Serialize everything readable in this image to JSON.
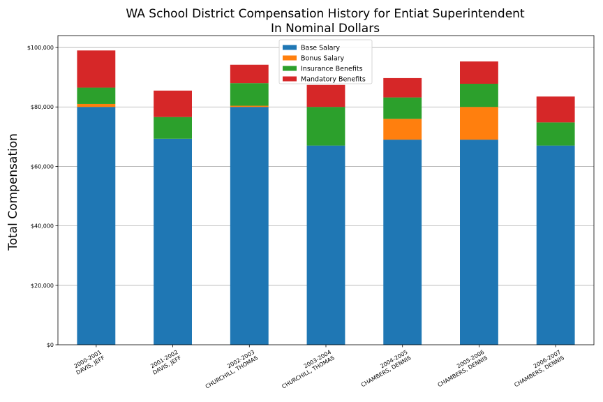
{
  "chart_data": {
    "type": "bar",
    "stacked": true,
    "title": [
      "WA School District Compensation History for Entiat Superintendent",
      "In Nominal Dollars"
    ],
    "xlabel": "",
    "ylabel": "Total Compensation",
    "ylim": [
      0,
      104000
    ],
    "yticks": [
      0,
      20000,
      40000,
      60000,
      80000,
      100000
    ],
    "ytick_labels": [
      "$0",
      "$20,000",
      "$40,000",
      "$60,000",
      "$80,000",
      "$100,000"
    ],
    "grid": "horizontal",
    "legend_position": "top-center",
    "categories": [
      [
        "2000-2001",
        "DAVIS, JEFF"
      ],
      [
        "2001-2002",
        "DAVIS, JEFF"
      ],
      [
        "2002-2003",
        "CHURCHILL, THOMAS"
      ],
      [
        "2003-2004",
        "CHURCHILL, THOMAS"
      ],
      [
        "2004-2005",
        "CHAMBERS, DENNIS"
      ],
      [
        "2005-2006",
        "CHAMBERS, DENNIS"
      ],
      [
        "2006-2007",
        "CHAMBERS, DENNIS"
      ]
    ],
    "series": [
      {
        "name": "Base Salary",
        "color": "#1f77b4",
        "values": [
          80000,
          69300,
          80000,
          67000,
          69000,
          69000,
          67000
        ]
      },
      {
        "name": "Bonus Salary",
        "color": "#ff7f0e",
        "values": [
          1000,
          0,
          400,
          0,
          7000,
          11000,
          0
        ]
      },
      {
        "name": "Insurance Benefits",
        "color": "#2ca02c",
        "values": [
          5500,
          7300,
          7600,
          13000,
          7200,
          7800,
          7800
        ]
      },
      {
        "name": "Mandatory Benefits",
        "color": "#d62728",
        "values": [
          12500,
          8900,
          6200,
          7400,
          6500,
          7500,
          8700
        ]
      }
    ]
  }
}
